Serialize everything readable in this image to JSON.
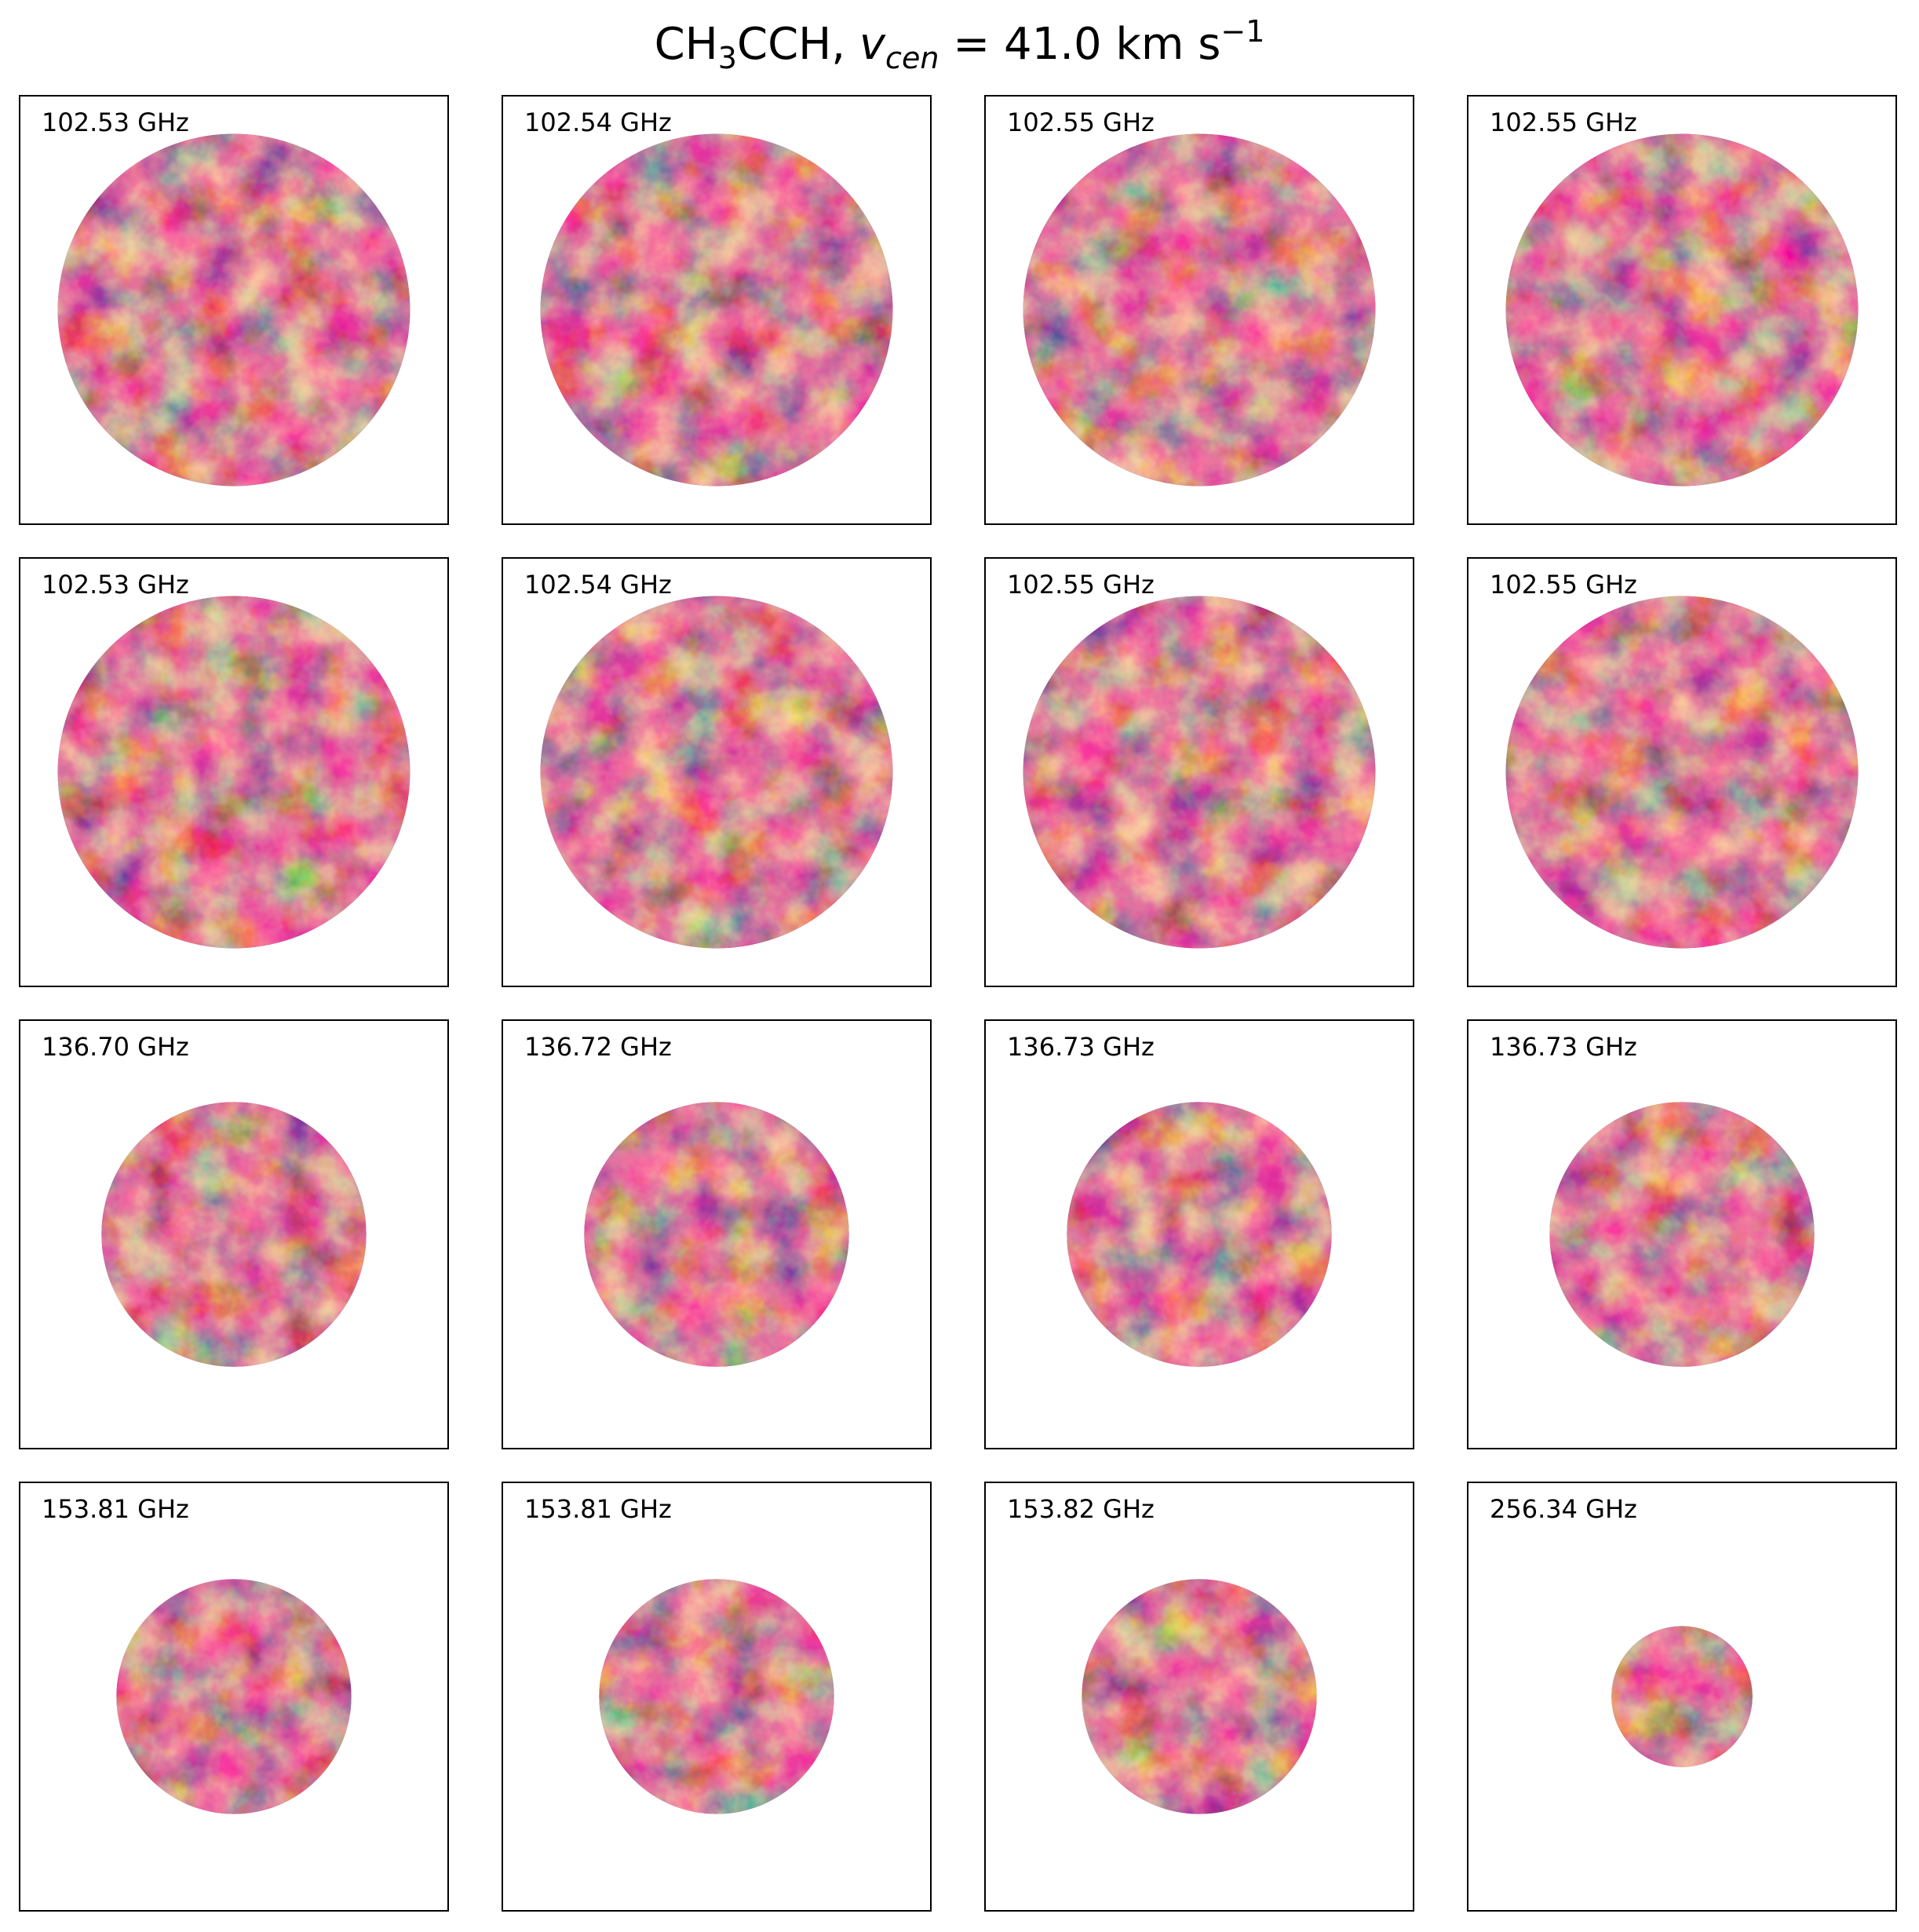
{
  "chart_data": {
    "type": "heatmap",
    "title_parts": {
      "species_a": "CH",
      "species_sub": "3",
      "species_b": "CCH,",
      "v_symbol": "v",
      "v_sub": "cen",
      "eq_value": "= 41.0 km s",
      "exp": "−1"
    },
    "colormap": "inferno",
    "grid": {
      "rows": 4,
      "cols": 4
    },
    "panels": [
      {
        "label": "102.53 GHz",
        "beam_fraction": 0.825
      },
      {
        "label": "102.54 GHz",
        "beam_fraction": 0.825
      },
      {
        "label": "102.55 GHz",
        "beam_fraction": 0.825
      },
      {
        "label": "102.55 GHz",
        "beam_fraction": 0.825
      },
      {
        "label": "102.53 GHz",
        "beam_fraction": 0.825
      },
      {
        "label": "102.54 GHz",
        "beam_fraction": 0.825
      },
      {
        "label": "102.55 GHz",
        "beam_fraction": 0.825
      },
      {
        "label": "102.55 GHz",
        "beam_fraction": 0.825
      },
      {
        "label": "136.70 GHz",
        "beam_fraction": 0.62
      },
      {
        "label": "136.72 GHz",
        "beam_fraction": 0.62
      },
      {
        "label": "136.73 GHz",
        "beam_fraction": 0.62
      },
      {
        "label": "136.73 GHz",
        "beam_fraction": 0.62
      },
      {
        "label": "153.81 GHz",
        "beam_fraction": 0.55
      },
      {
        "label": "153.81 GHz",
        "beam_fraction": 0.55
      },
      {
        "label": "153.82 GHz",
        "beam_fraction": 0.55
      },
      {
        "label": "256.34 GHz",
        "beam_fraction": 0.33
      }
    ]
  }
}
